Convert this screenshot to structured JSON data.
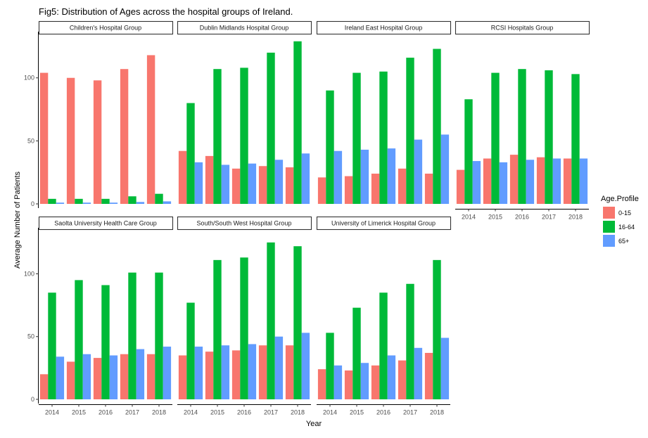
{
  "chart_data": {
    "type": "bar",
    "title": "Fig5: Distribution of Ages across the hospital groups of Ireland.",
    "xlabel": "Year",
    "ylabel": "Average Number of Patients",
    "ylim": [
      0,
      135
    ],
    "y_ticks": [
      0,
      50,
      100
    ],
    "categories": [
      "2014",
      "2015",
      "2016",
      "2017",
      "2018"
    ],
    "legend": {
      "title": "Age.Profile",
      "placement": "right",
      "entries": [
        {
          "name": "0-15",
          "color": "#F8766D"
        },
        {
          "name": "16-64",
          "color": "#00BA38"
        },
        {
          "name": "65+",
          "color": "#619CFF"
        }
      ]
    },
    "panels": [
      {
        "name": "Children's Hospital Group",
        "series": [
          {
            "name": "0-15",
            "values": [
              104,
              100,
              98,
              107,
              118
            ]
          },
          {
            "name": "16-64",
            "values": [
              4,
              4,
              4,
              6,
              8
            ]
          },
          {
            "name": "65+",
            "values": [
              1,
              1,
              1,
              1.5,
              2
            ]
          }
        ]
      },
      {
        "name": "Dublin Midlands Hospital Group",
        "series": [
          {
            "name": "0-15",
            "values": [
              42,
              38,
              28,
              30,
              29
            ]
          },
          {
            "name": "16-64",
            "values": [
              80,
              107,
              108,
              120,
              129
            ]
          },
          {
            "name": "65+",
            "values": [
              33,
              31,
              32,
              35,
              40
            ]
          }
        ]
      },
      {
        "name": "Ireland East Hospital Group",
        "series": [
          {
            "name": "0-15",
            "values": [
              21,
              22,
              24,
              28,
              24
            ]
          },
          {
            "name": "16-64",
            "values": [
              90,
              104,
              105,
              116,
              123
            ]
          },
          {
            "name": "65+",
            "values": [
              42,
              43,
              44,
              51,
              55
            ]
          }
        ]
      },
      {
        "name": "RCSI  Hospitals Group",
        "series": [
          {
            "name": "0-15",
            "values": [
              27,
              36,
              39,
              37,
              36
            ]
          },
          {
            "name": "16-64",
            "values": [
              83,
              104,
              107,
              106,
              103
            ]
          },
          {
            "name": "65+",
            "values": [
              34,
              33,
              35,
              36,
              36
            ]
          }
        ]
      },
      {
        "name": "Saolta University Health Care Group",
        "series": [
          {
            "name": "0-15",
            "values": [
              20,
              30,
              33,
              36,
              36
            ]
          },
          {
            "name": "16-64",
            "values": [
              85,
              95,
              91,
              101,
              101
            ]
          },
          {
            "name": "65+",
            "values": [
              34,
              36,
              35,
              40,
              42
            ]
          }
        ]
      },
      {
        "name": "South/South West Hospital Group",
        "series": [
          {
            "name": "0-15",
            "values": [
              35,
              38,
              39,
              43,
              43
            ]
          },
          {
            "name": "16-64",
            "values": [
              77,
              111,
              113,
              125,
              122
            ]
          },
          {
            "name": "65+",
            "values": [
              42,
              43,
              44,
              50,
              53
            ]
          }
        ]
      },
      {
        "name": "University of Limerick Hospital Group",
        "series": [
          {
            "name": "0-15",
            "values": [
              24,
              23,
              27,
              31,
              37
            ]
          },
          {
            "name": "16-64",
            "values": [
              53,
              73,
              85,
              92,
              111
            ]
          },
          {
            "name": "65+",
            "values": [
              27,
              29,
              35,
              41,
              49
            ]
          }
        ]
      }
    ]
  }
}
